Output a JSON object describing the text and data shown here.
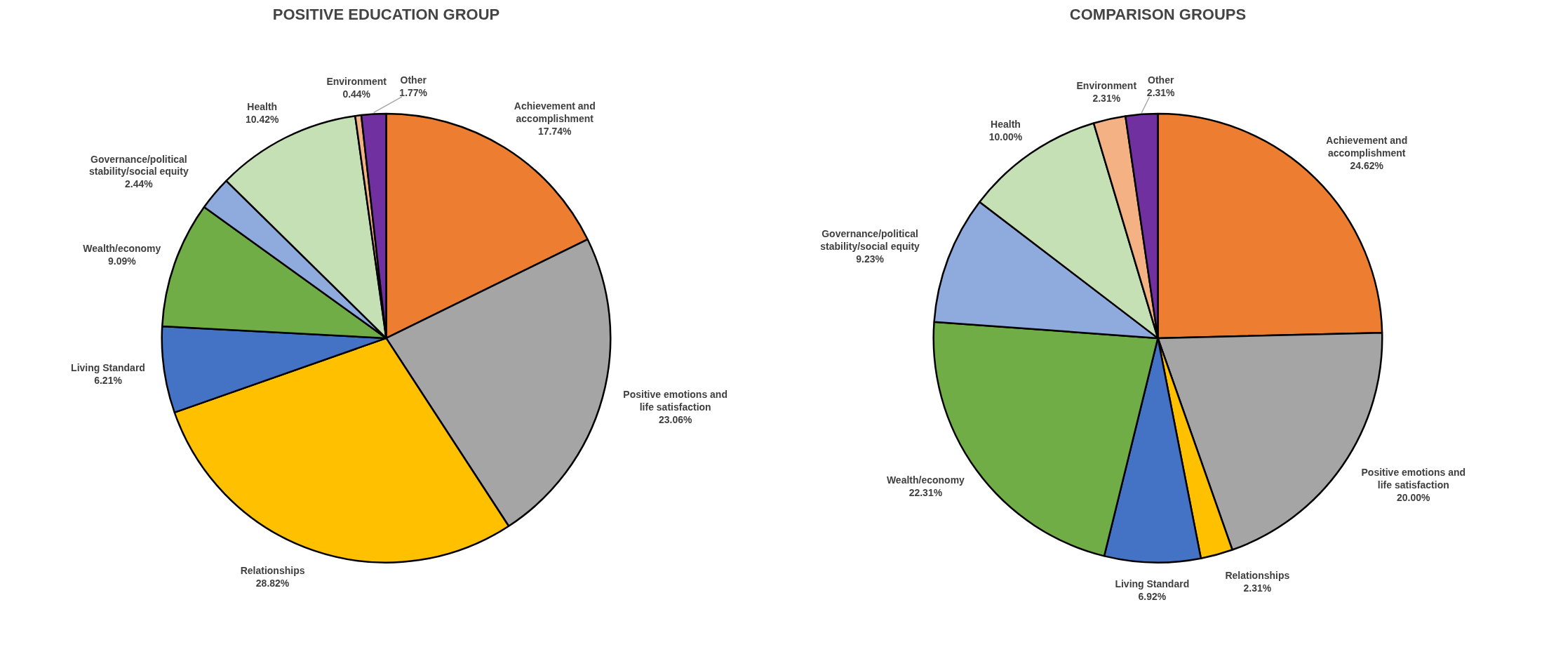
{
  "chart_data": [
    {
      "type": "pie",
      "title": "POSITIVE EDUCATION GROUP",
      "categories": [
        "Achievement and accomplishment",
        "Positive emotions and life satisfaction",
        "Relationships",
        "Living Standard",
        "Wealth/economy",
        "Governance/political stability/social equity",
        "Health",
        "Environment",
        "Other"
      ],
      "values": [
        17.74,
        23.06,
        28.82,
        6.21,
        9.09,
        2.44,
        10.42,
        0.44,
        1.77
      ],
      "value_labels": [
        "17.74%",
        "23.06%",
        "28.82%",
        "6.21%",
        "9.09%",
        "2.44%",
        "10.42%",
        "0.44%",
        "1.77%"
      ],
      "colors": [
        "#ed7d31",
        "#a5a5a5",
        "#ffc000",
        "#4472c4",
        "#70ad47",
        "#8faadc",
        "#c5e0b4",
        "#f4b183",
        "#7030a0"
      ],
      "legend": false
    },
    {
      "type": "pie",
      "title": "COMPARISON GROUPS",
      "categories": [
        "Achievement and accomplishment",
        "Positive emotions and life satisfaction",
        "Relationships",
        "Living Standard",
        "Wealth/economy",
        "Governance/political stability/social equity",
        "Health",
        "Environment",
        "Other"
      ],
      "values": [
        24.62,
        20.0,
        2.31,
        6.92,
        22.31,
        9.23,
        10.0,
        2.31,
        2.31
      ],
      "value_labels": [
        "24.62%",
        "20.00%",
        "2.31%",
        "6.92%",
        "22.31%",
        "9.23%",
        "10.00%",
        "2.31%",
        "2.31%"
      ],
      "colors": [
        "#ed7d31",
        "#a5a5a5",
        "#ffc000",
        "#4472c4",
        "#70ad47",
        "#8faadc",
        "#c5e0b4",
        "#f4b183",
        "#7030a0"
      ],
      "legend": false
    }
  ]
}
